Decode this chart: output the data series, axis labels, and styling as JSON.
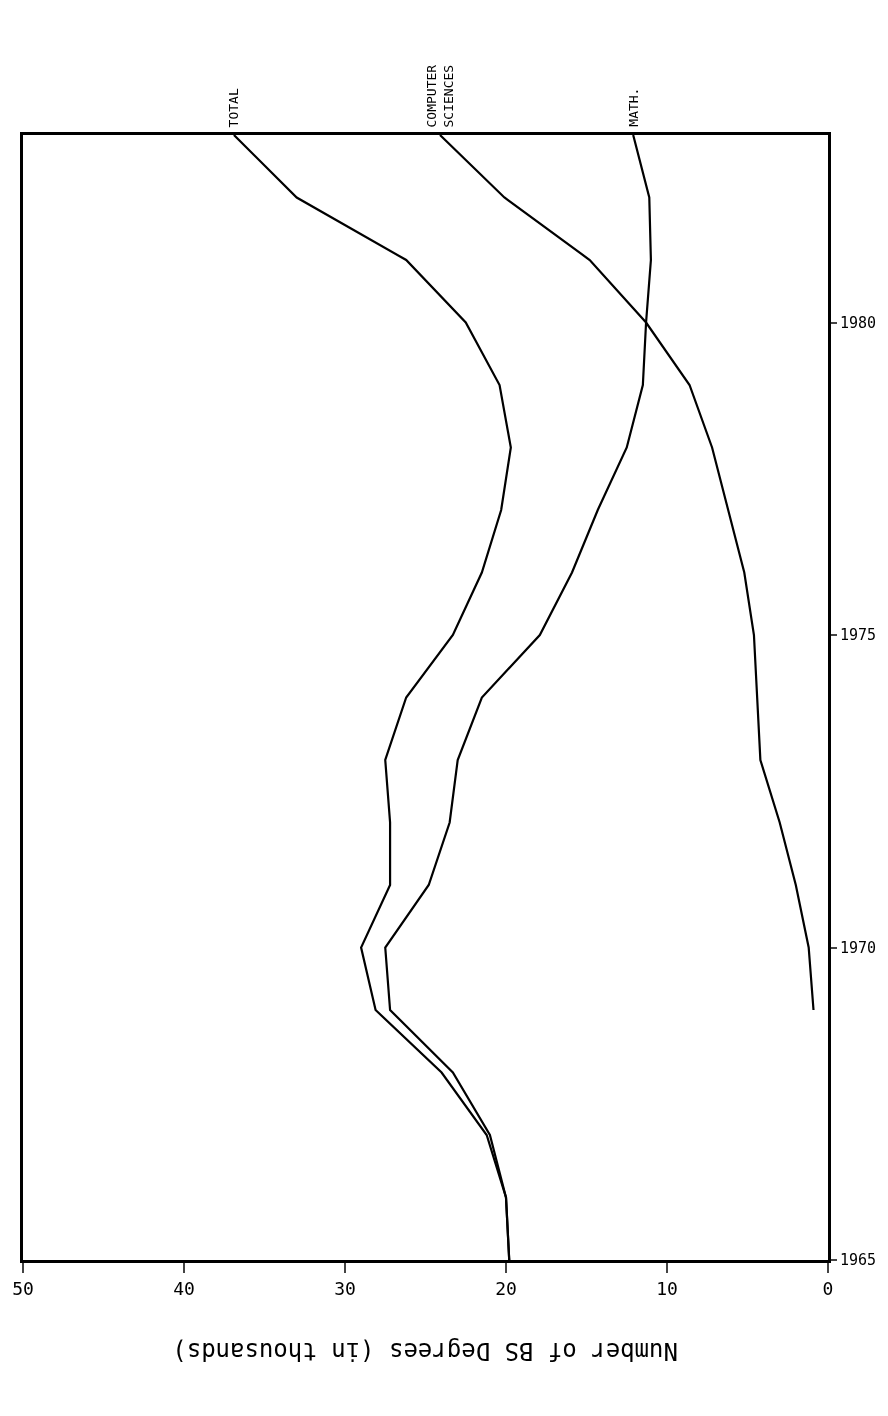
{
  "chart_data": {
    "type": "line",
    "xlabel": "Number of BS Degrees (in thousands)",
    "series": [
      {
        "name": "TOTAL",
        "color": "#000000",
        "x": [
          19.8,
          20.0,
          21.2,
          24.0,
          28.1,
          29.0,
          27.2,
          27.2,
          27.5,
          26.2,
          23.3,
          21.5,
          20.3,
          19.7,
          20.4,
          22.5,
          26.2,
          33.0,
          36.9
        ],
        "values": [
          1965,
          1966,
          1967,
          1968,
          1969,
          1970,
          1971,
          1972,
          1973,
          1974,
          1975,
          1976,
          1977,
          1978,
          1979,
          1980,
          1981,
          1982,
          1983
        ]
      },
      {
        "name": "COMPUTER\nSCIENCES",
        "color": "#000000",
        "x": [
          0.9,
          1.2,
          2.0,
          3.0,
          4.2,
          4.4,
          4.6,
          5.2,
          6.2,
          7.2,
          8.6,
          11.3,
          14.8,
          20.1,
          24.1
        ],
        "values": [
          1969,
          1970,
          1971,
          1972,
          1973,
          1974,
          1975,
          1976,
          1977,
          1978,
          1979,
          1980,
          1981,
          1982,
          1983
        ]
      },
      {
        "name": "MATH.",
        "color": "#000000",
        "x": [
          19.8,
          20.0,
          21.0,
          23.3,
          27.2,
          27.5,
          24.8,
          23.5,
          23.0,
          21.5,
          17.9,
          15.9,
          14.3,
          12.5,
          11.5,
          11.3,
          11.0,
          11.1,
          12.1
        ],
        "values": [
          1965,
          1966,
          1967,
          1968,
          1969,
          1970,
          1971,
          1972,
          1973,
          1974,
          1975,
          1976,
          1977,
          1978,
          1979,
          1980,
          1981,
          1982,
          1983
        ]
      }
    ],
    "xlim": [
      50,
      0
    ],
    "xticks": [
      0,
      10,
      20,
      30,
      40,
      50
    ],
    "ylim": [
      1965,
      1983
    ],
    "yticks": [
      1965,
      1970,
      1975,
      1980
    ],
    "grid": false,
    "legend": false,
    "marker": "none",
    "line_style": "solid"
  }
}
